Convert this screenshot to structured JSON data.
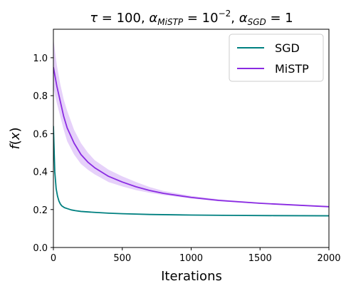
{
  "chart_data": {
    "type": "line",
    "title": "τ = 100, α_MiSTP = 10^−2, α_SGD = 1",
    "title_parts": {
      "tau": "τ",
      "tau_value": " = 100, ",
      "alpha": "α",
      "mistp_sub": "MiSTP",
      "mistp_value": " = 10",
      "mistp_exp": "−2",
      "sep": ", ",
      "sgd_sub": "SGD",
      "sgd_value": " = 1"
    },
    "xlabel": "Iterations",
    "ylabel_parts": {
      "f": "f",
      "open": "(",
      "x": "x",
      "close": ")"
    },
    "xlim": [
      0,
      2000
    ],
    "ylim": [
      0,
      1.15
    ],
    "xticks": [
      0,
      500,
      1000,
      1500,
      2000
    ],
    "xtick_labels": [
      "0",
      "500",
      "1000",
      "1500",
      "2000"
    ],
    "yticks": [
      0.0,
      0.2,
      0.4,
      0.6,
      0.8,
      1.0
    ],
    "ytick_labels": [
      "0.0",
      "0.2",
      "0.4",
      "0.6",
      "0.8",
      "1.0"
    ],
    "grid": false,
    "legend_position": "top-right",
    "series": [
      {
        "name": "SGD",
        "color": "#008080",
        "x": [
          0,
          5,
          10,
          20,
          30,
          40,
          50,
          60,
          80,
          100,
          130,
          160,
          200,
          300,
          400,
          500,
          700,
          1000,
          1300,
          1600,
          2000
        ],
        "y": [
          0.64,
          0.52,
          0.4,
          0.31,
          0.27,
          0.245,
          0.23,
          0.22,
          0.21,
          0.205,
          0.198,
          0.194,
          0.19,
          0.185,
          0.181,
          0.178,
          0.174,
          0.171,
          0.169,
          0.168,
          0.167
        ],
        "band_low": [],
        "band_high": []
      },
      {
        "name": "MiSTP",
        "color": "#8a2be2",
        "band_color": "#d6b3f7",
        "x": [
          0,
          25,
          50,
          75,
          100,
          150,
          200,
          250,
          300,
          400,
          500,
          600,
          700,
          800,
          1000,
          1200,
          1500,
          1800,
          2000
        ],
        "y": [
          0.95,
          0.85,
          0.77,
          0.69,
          0.63,
          0.55,
          0.49,
          0.45,
          0.42,
          0.375,
          0.345,
          0.32,
          0.3,
          0.285,
          0.264,
          0.248,
          0.233,
          0.222,
          0.215
        ],
        "band_low": [
          0.84,
          0.76,
          0.69,
          0.62,
          0.56,
          0.49,
          0.44,
          0.41,
          0.385,
          0.345,
          0.322,
          0.302,
          0.288,
          0.276,
          0.258,
          0.244,
          0.23,
          0.22,
          0.212
        ],
        "band_high": [
          1.1,
          0.96,
          0.86,
          0.78,
          0.72,
          0.62,
          0.55,
          0.5,
          0.46,
          0.41,
          0.375,
          0.345,
          0.318,
          0.298,
          0.272,
          0.254,
          0.237,
          0.225,
          0.218
        ]
      }
    ]
  }
}
